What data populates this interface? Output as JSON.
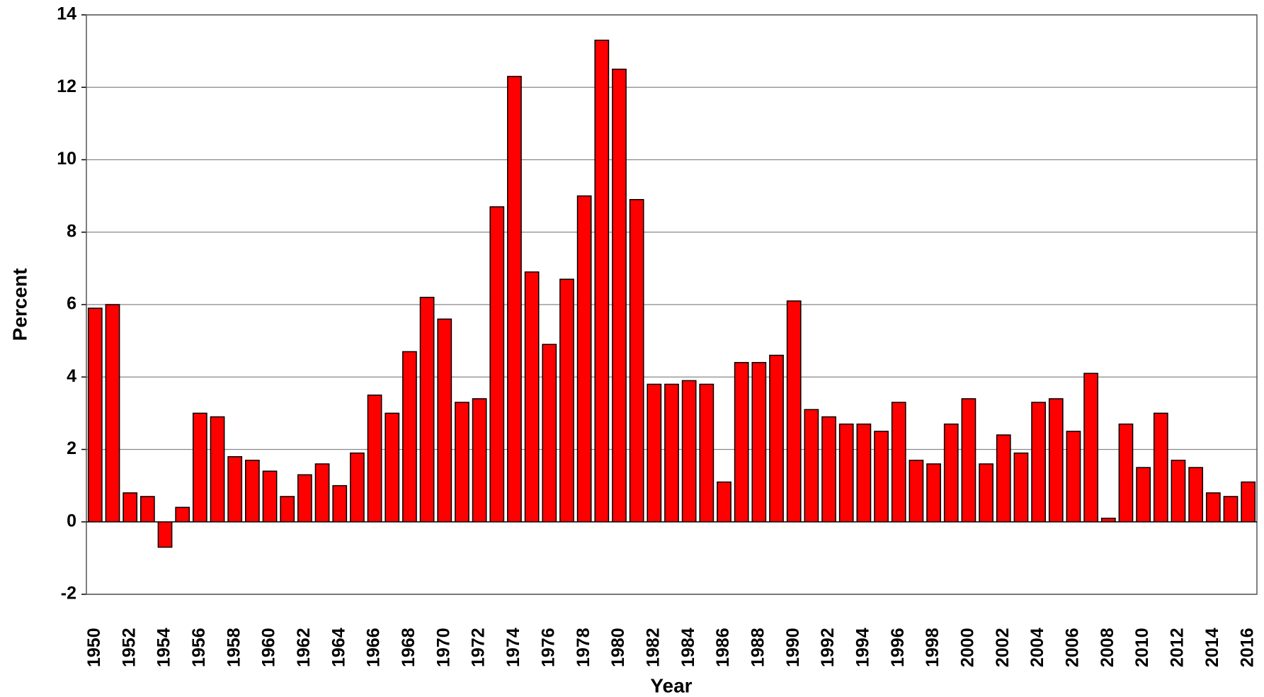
{
  "chart_data": {
    "type": "bar",
    "x_label": "Year",
    "y_label": "Percent",
    "categories": [
      "1950",
      null,
      "1952",
      null,
      "1954",
      null,
      "1956",
      null,
      "1958",
      null,
      "1960",
      null,
      "1962",
      null,
      "1964",
      null,
      "1966",
      null,
      "1968",
      null,
      "1970",
      null,
      "1972",
      null,
      "1974",
      null,
      "1976",
      null,
      "1978",
      null,
      "1980",
      null,
      "1982",
      null,
      "1984",
      null,
      "1986",
      null,
      "1988",
      null,
      "1990",
      null,
      "1992",
      null,
      "1994",
      null,
      "1996",
      null,
      "1998",
      null,
      "2000",
      null,
      "2002",
      null,
      "2004",
      null,
      "2006",
      null,
      "2008",
      null,
      "2010",
      null,
      "2012",
      null,
      "2014",
      null,
      "2016"
    ],
    "values": [
      5.9,
      6.0,
      0.8,
      0.7,
      -0.7,
      0.4,
      3.0,
      2.9,
      1.8,
      1.7,
      1.4,
      0.7,
      1.3,
      1.6,
      1.0,
      1.9,
      3.5,
      3.0,
      4.7,
      6.2,
      5.6,
      3.3,
      3.4,
      8.7,
      12.3,
      6.9,
      4.9,
      6.7,
      9.0,
      13.3,
      12.5,
      8.9,
      3.8,
      3.8,
      3.9,
      3.8,
      1.1,
      4.4,
      4.4,
      4.6,
      6.1,
      3.1,
      2.9,
      2.7,
      2.7,
      2.5,
      3.3,
      1.7,
      1.6,
      2.7,
      3.4,
      1.6,
      2.4,
      1.9,
      3.3,
      3.4,
      2.5,
      4.1,
      0.1,
      2.7,
      1.5,
      3.0,
      1.7,
      1.5,
      0.8,
      0.7,
      1.1
    ],
    "color": "#ff0000",
    "ylim": [
      -2,
      14
    ],
    "yticks": [
      -2,
      0,
      2,
      4,
      6,
      8,
      10,
      12,
      14
    ],
    "grid": true
  }
}
